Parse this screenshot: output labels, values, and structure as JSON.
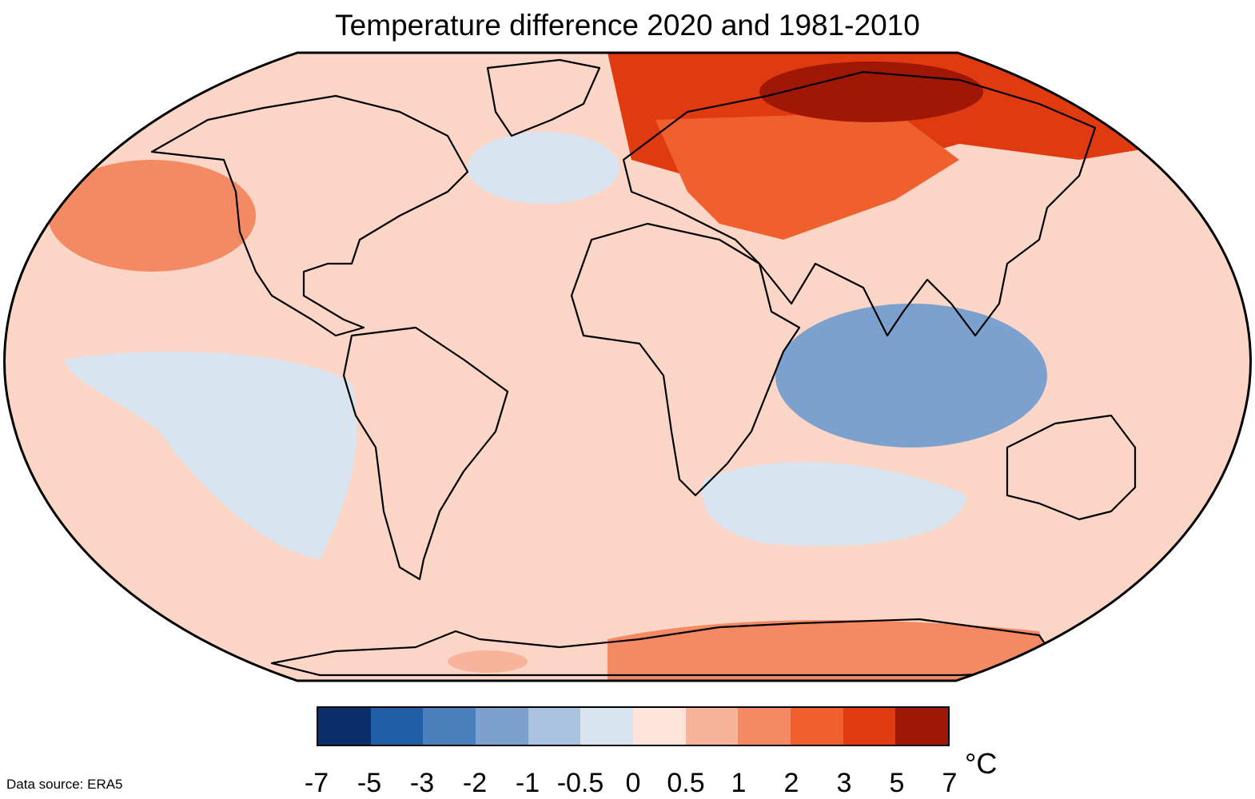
{
  "title": "Temperature difference 2020 and 1981-2010",
  "source": "Data source: ERA5",
  "unit": "°C",
  "legend": {
    "ticks": [
      "-7",
      "-5",
      "-3",
      "-2",
      "-1",
      "-0.5",
      "0",
      "0.5",
      "1",
      "2",
      "3",
      "5",
      "7"
    ],
    "colors": [
      "#0b2f6b",
      "#1f5fa6",
      "#4b7fbb",
      "#7ca1cf",
      "#a9c3e0",
      "#d9e4f1",
      "#fde5dc",
      "#f7b49b",
      "#f38a64",
      "#f0602f",
      "#e03a10",
      "#a01705"
    ]
  },
  "map": {
    "ocean_color": "#fbd6c6",
    "outline_color": "#000000",
    "regions": [
      {
        "name": "siberia-hotspot",
        "color": "#a01705"
      },
      {
        "name": "northern-eurasia-warm",
        "color": "#e03a10"
      },
      {
        "name": "russia-warm",
        "color": "#f0602f"
      },
      {
        "name": "north-pacific-warm",
        "color": "#f38a64"
      },
      {
        "name": "north-atlantic-cool",
        "color": "#d9e4f1"
      },
      {
        "name": "eastern-pacific-cool",
        "color": "#d9e4f1"
      },
      {
        "name": "southern-ocean-cool",
        "color": "#d9e4f1"
      },
      {
        "name": "antarctic-peninsula-cold",
        "color": "#7ca1cf"
      },
      {
        "name": "indian-ocean-warm",
        "color": "#f7b49b"
      },
      {
        "name": "antarctica-warm",
        "color": "#f38a64"
      }
    ]
  }
}
